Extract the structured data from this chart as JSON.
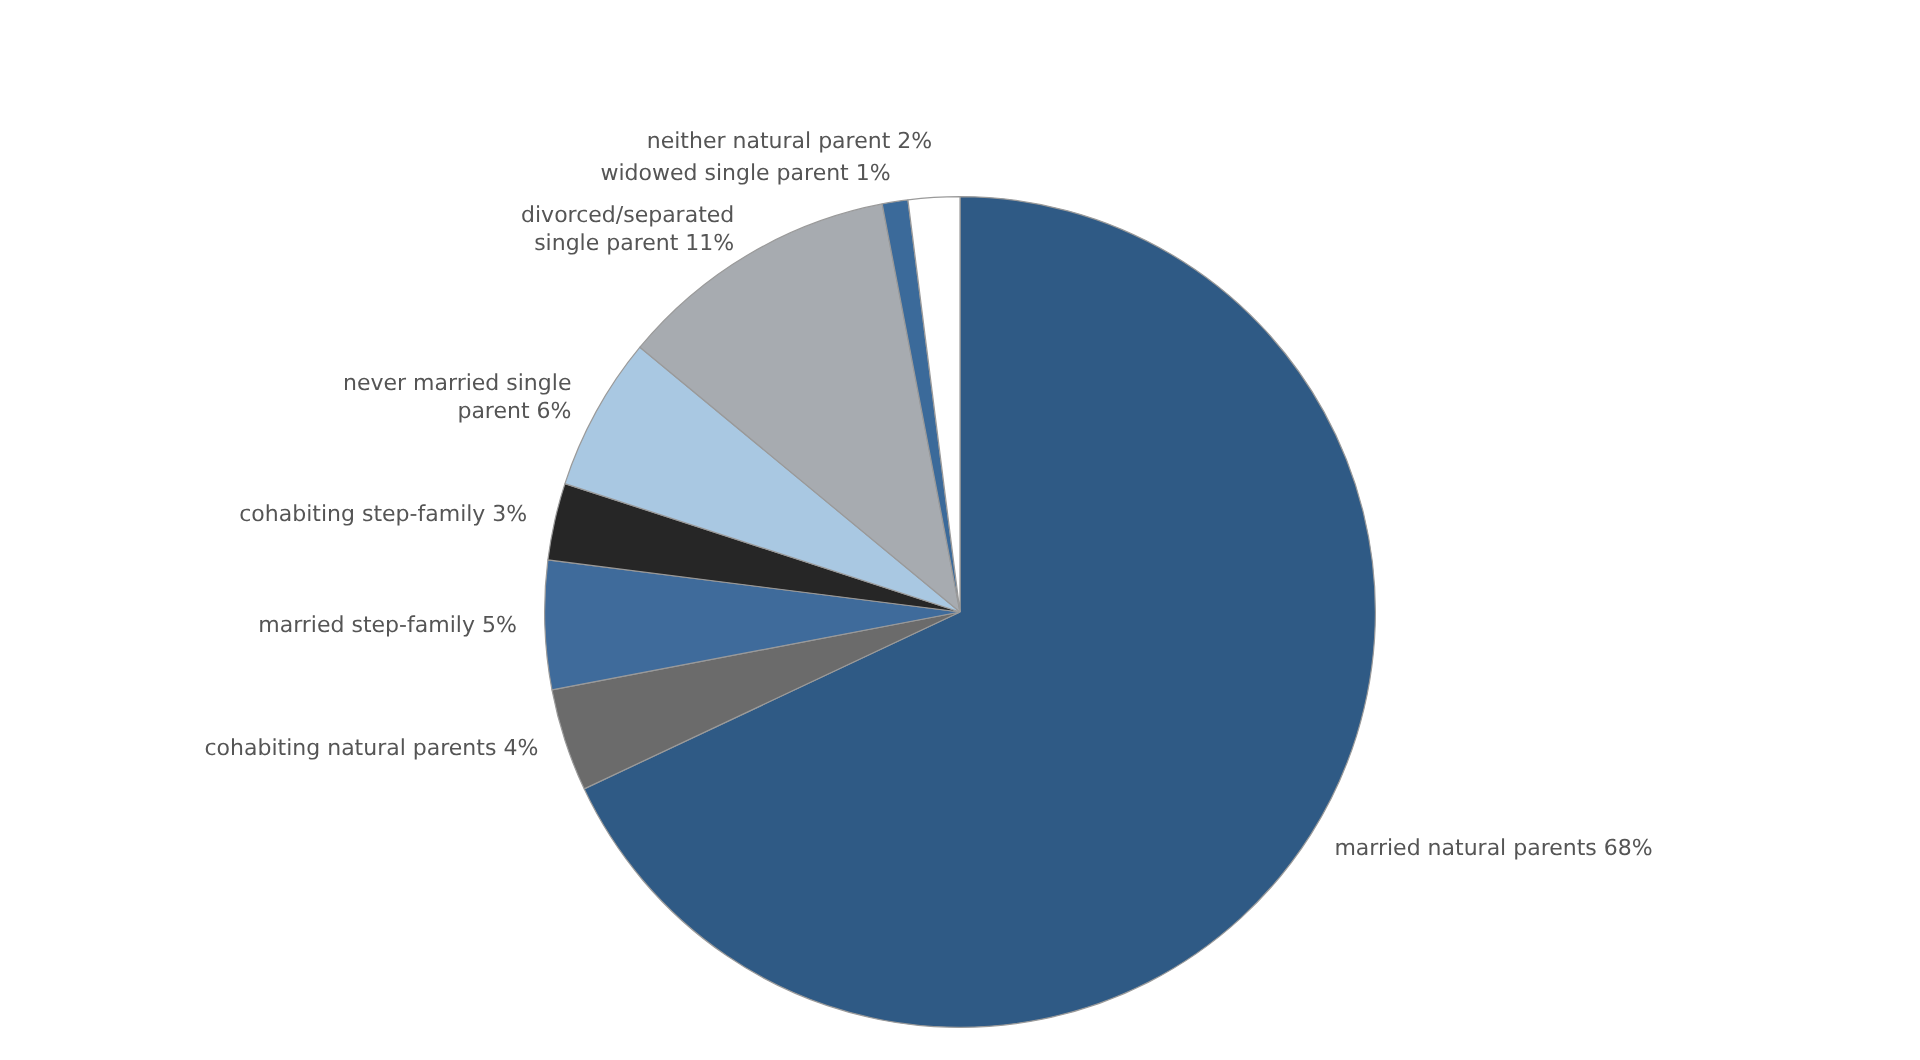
{
  "chart_data": {
    "type": "pie",
    "categories": [
      "married natural parents",
      "cohabiting natural parents",
      "married step-family",
      "cohabiting step-family",
      "never married single parent",
      "divorced/separated single parent",
      "widowed single parent",
      "neither natural parent"
    ],
    "values": [
      68,
      4,
      5,
      3,
      6,
      11,
      1,
      2
    ],
    "value_labels": [
      "68%",
      "4%",
      "5%",
      "3%",
      "6%",
      "11%",
      "1%",
      "2%"
    ],
    "colors": [
      "#2f5a85",
      "#6b6b6b",
      "#3f6b9b",
      "#262626",
      "#a9c8e2",
      "#a7abb0",
      "#3b6a9a",
      "#ffffff"
    ],
    "legend": false
  }
}
